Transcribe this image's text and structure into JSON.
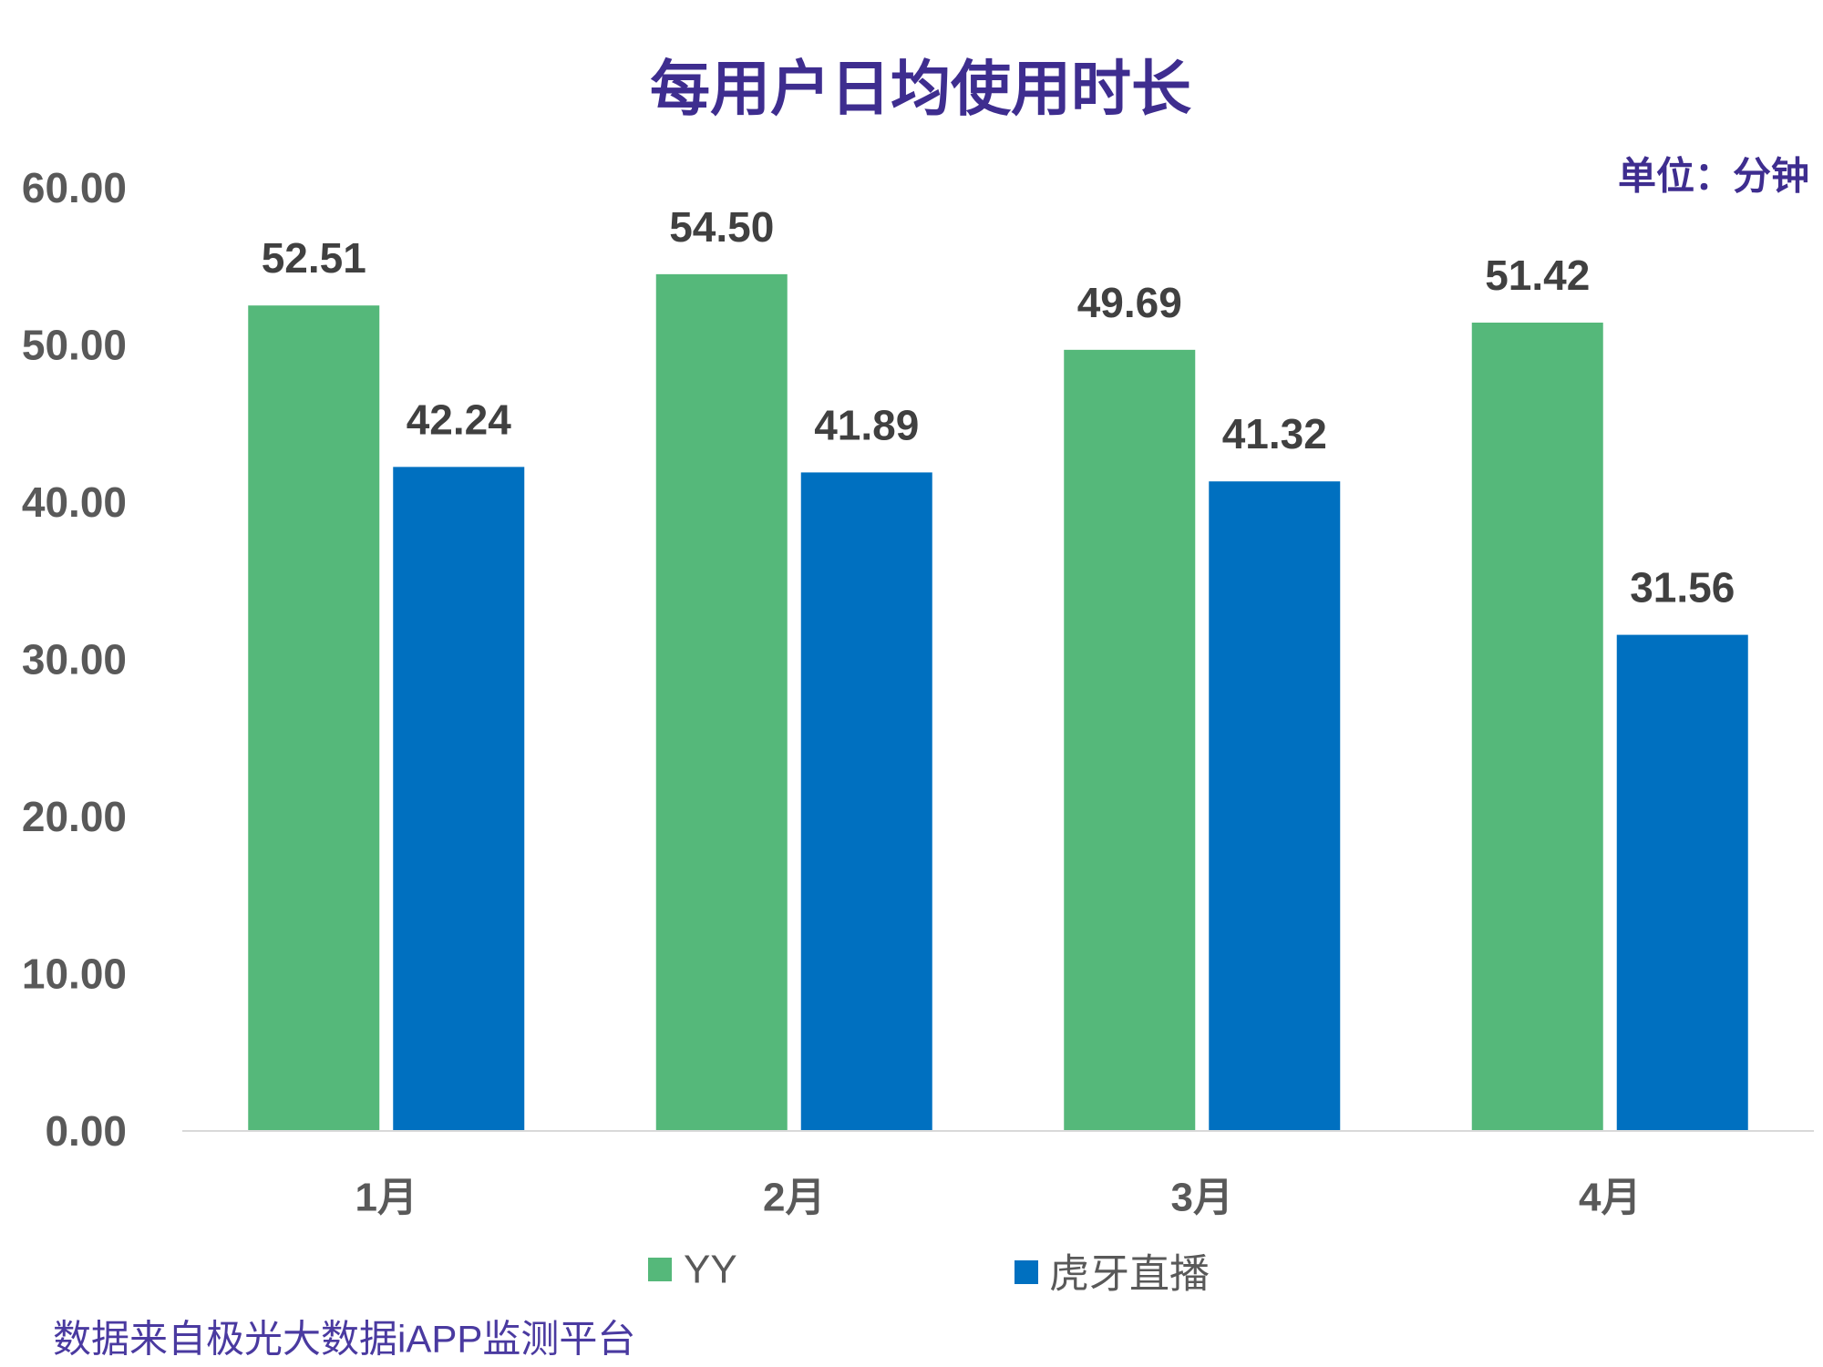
{
  "source_note": "数据来自极光大数据iAPP监测平台",
  "colors": {
    "title": "#3E2D8F",
    "source_note": "#4A3AA0",
    "axis_text": "#595959",
    "data_label": "#404040",
    "baseline": "#D9D9D9",
    "background": "#FFFFFF"
  },
  "chart_data": {
    "type": "bar",
    "title": "每用户日均使用时长",
    "unit_label": "单位：分钟",
    "categories": [
      "1月",
      "2月",
      "3月",
      "4月"
    ],
    "series": [
      {
        "name": "YY",
        "color": "#55B87A",
        "values": [
          52.51,
          54.5,
          49.69,
          51.42
        ]
      },
      {
        "name": "虎牙直播",
        "color": "#0070C0",
        "values": [
          42.24,
          41.89,
          41.32,
          31.56
        ]
      }
    ],
    "ylim": [
      0,
      60
    ],
    "yticks": [
      "0.00",
      "10.00",
      "20.00",
      "30.00",
      "40.00",
      "50.00",
      "60.00"
    ],
    "grid": false,
    "legend": "bottom",
    "data_labels": true
  }
}
